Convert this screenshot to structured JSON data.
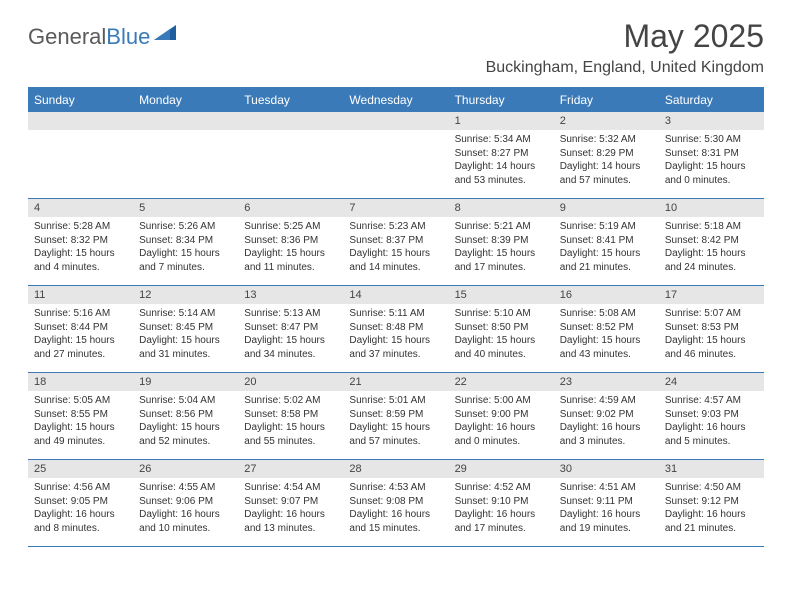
{
  "logo": {
    "text_gray": "General",
    "text_blue": "Blue"
  },
  "title": {
    "month": "May 2025",
    "location": "Buckingham, England, United Kingdom"
  },
  "colors": {
    "header_bg": "#3b7ab8",
    "daynum_bg": "#e6e6e6",
    "border": "#3b7ab8",
    "text": "#333333"
  },
  "day_names": [
    "Sunday",
    "Monday",
    "Tuesday",
    "Wednesday",
    "Thursday",
    "Friday",
    "Saturday"
  ],
  "weeks": [
    [
      {
        "n": "",
        "sr": "",
        "ss": "",
        "dl": ""
      },
      {
        "n": "",
        "sr": "",
        "ss": "",
        "dl": ""
      },
      {
        "n": "",
        "sr": "",
        "ss": "",
        "dl": ""
      },
      {
        "n": "",
        "sr": "",
        "ss": "",
        "dl": ""
      },
      {
        "n": "1",
        "sr": "Sunrise: 5:34 AM",
        "ss": "Sunset: 8:27 PM",
        "dl": "Daylight: 14 hours and 53 minutes."
      },
      {
        "n": "2",
        "sr": "Sunrise: 5:32 AM",
        "ss": "Sunset: 8:29 PM",
        "dl": "Daylight: 14 hours and 57 minutes."
      },
      {
        "n": "3",
        "sr": "Sunrise: 5:30 AM",
        "ss": "Sunset: 8:31 PM",
        "dl": "Daylight: 15 hours and 0 minutes."
      }
    ],
    [
      {
        "n": "4",
        "sr": "Sunrise: 5:28 AM",
        "ss": "Sunset: 8:32 PM",
        "dl": "Daylight: 15 hours and 4 minutes."
      },
      {
        "n": "5",
        "sr": "Sunrise: 5:26 AM",
        "ss": "Sunset: 8:34 PM",
        "dl": "Daylight: 15 hours and 7 minutes."
      },
      {
        "n": "6",
        "sr": "Sunrise: 5:25 AM",
        "ss": "Sunset: 8:36 PM",
        "dl": "Daylight: 15 hours and 11 minutes."
      },
      {
        "n": "7",
        "sr": "Sunrise: 5:23 AM",
        "ss": "Sunset: 8:37 PM",
        "dl": "Daylight: 15 hours and 14 minutes."
      },
      {
        "n": "8",
        "sr": "Sunrise: 5:21 AM",
        "ss": "Sunset: 8:39 PM",
        "dl": "Daylight: 15 hours and 17 minutes."
      },
      {
        "n": "9",
        "sr": "Sunrise: 5:19 AM",
        "ss": "Sunset: 8:41 PM",
        "dl": "Daylight: 15 hours and 21 minutes."
      },
      {
        "n": "10",
        "sr": "Sunrise: 5:18 AM",
        "ss": "Sunset: 8:42 PM",
        "dl": "Daylight: 15 hours and 24 minutes."
      }
    ],
    [
      {
        "n": "11",
        "sr": "Sunrise: 5:16 AM",
        "ss": "Sunset: 8:44 PM",
        "dl": "Daylight: 15 hours and 27 minutes."
      },
      {
        "n": "12",
        "sr": "Sunrise: 5:14 AM",
        "ss": "Sunset: 8:45 PM",
        "dl": "Daylight: 15 hours and 31 minutes."
      },
      {
        "n": "13",
        "sr": "Sunrise: 5:13 AM",
        "ss": "Sunset: 8:47 PM",
        "dl": "Daylight: 15 hours and 34 minutes."
      },
      {
        "n": "14",
        "sr": "Sunrise: 5:11 AM",
        "ss": "Sunset: 8:48 PM",
        "dl": "Daylight: 15 hours and 37 minutes."
      },
      {
        "n": "15",
        "sr": "Sunrise: 5:10 AM",
        "ss": "Sunset: 8:50 PM",
        "dl": "Daylight: 15 hours and 40 minutes."
      },
      {
        "n": "16",
        "sr": "Sunrise: 5:08 AM",
        "ss": "Sunset: 8:52 PM",
        "dl": "Daylight: 15 hours and 43 minutes."
      },
      {
        "n": "17",
        "sr": "Sunrise: 5:07 AM",
        "ss": "Sunset: 8:53 PM",
        "dl": "Daylight: 15 hours and 46 minutes."
      }
    ],
    [
      {
        "n": "18",
        "sr": "Sunrise: 5:05 AM",
        "ss": "Sunset: 8:55 PM",
        "dl": "Daylight: 15 hours and 49 minutes."
      },
      {
        "n": "19",
        "sr": "Sunrise: 5:04 AM",
        "ss": "Sunset: 8:56 PM",
        "dl": "Daylight: 15 hours and 52 minutes."
      },
      {
        "n": "20",
        "sr": "Sunrise: 5:02 AM",
        "ss": "Sunset: 8:58 PM",
        "dl": "Daylight: 15 hours and 55 minutes."
      },
      {
        "n": "21",
        "sr": "Sunrise: 5:01 AM",
        "ss": "Sunset: 8:59 PM",
        "dl": "Daylight: 15 hours and 57 minutes."
      },
      {
        "n": "22",
        "sr": "Sunrise: 5:00 AM",
        "ss": "Sunset: 9:00 PM",
        "dl": "Daylight: 16 hours and 0 minutes."
      },
      {
        "n": "23",
        "sr": "Sunrise: 4:59 AM",
        "ss": "Sunset: 9:02 PM",
        "dl": "Daylight: 16 hours and 3 minutes."
      },
      {
        "n": "24",
        "sr": "Sunrise: 4:57 AM",
        "ss": "Sunset: 9:03 PM",
        "dl": "Daylight: 16 hours and 5 minutes."
      }
    ],
    [
      {
        "n": "25",
        "sr": "Sunrise: 4:56 AM",
        "ss": "Sunset: 9:05 PM",
        "dl": "Daylight: 16 hours and 8 minutes."
      },
      {
        "n": "26",
        "sr": "Sunrise: 4:55 AM",
        "ss": "Sunset: 9:06 PM",
        "dl": "Daylight: 16 hours and 10 minutes."
      },
      {
        "n": "27",
        "sr": "Sunrise: 4:54 AM",
        "ss": "Sunset: 9:07 PM",
        "dl": "Daylight: 16 hours and 13 minutes."
      },
      {
        "n": "28",
        "sr": "Sunrise: 4:53 AM",
        "ss": "Sunset: 9:08 PM",
        "dl": "Daylight: 16 hours and 15 minutes."
      },
      {
        "n": "29",
        "sr": "Sunrise: 4:52 AM",
        "ss": "Sunset: 9:10 PM",
        "dl": "Daylight: 16 hours and 17 minutes."
      },
      {
        "n": "30",
        "sr": "Sunrise: 4:51 AM",
        "ss": "Sunset: 9:11 PM",
        "dl": "Daylight: 16 hours and 19 minutes."
      },
      {
        "n": "31",
        "sr": "Sunrise: 4:50 AM",
        "ss": "Sunset: 9:12 PM",
        "dl": "Daylight: 16 hours and 21 minutes."
      }
    ]
  ]
}
